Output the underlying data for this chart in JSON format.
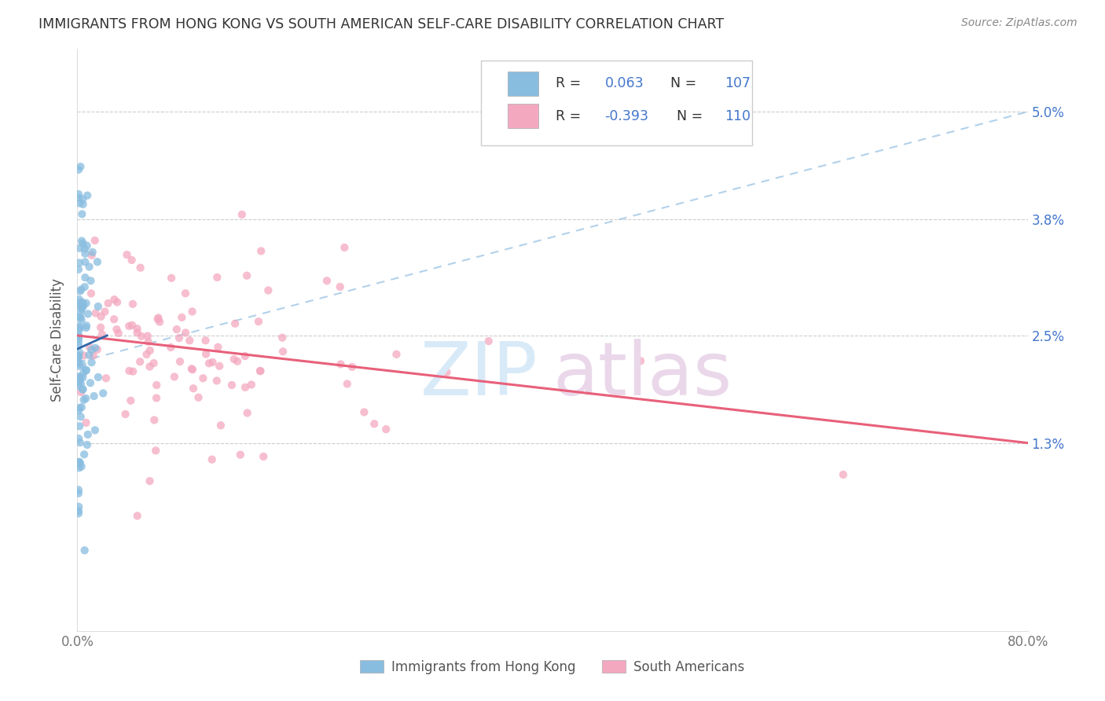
{
  "title": "IMMIGRANTS FROM HONG KONG VS SOUTH AMERICAN SELF-CARE DISABILITY CORRELATION CHART",
  "source": "Source: ZipAtlas.com",
  "ylabel": "Self-Care Disability",
  "ytick_labels": [
    "1.3%",
    "2.5%",
    "3.8%",
    "5.0%"
  ],
  "ytick_values": [
    0.013,
    0.025,
    0.038,
    0.05
  ],
  "xmin": 0.0,
  "xmax": 0.8,
  "ymin": -0.008,
  "ymax": 0.057,
  "R_hk": 0.063,
  "N_hk": 107,
  "R_sa": -0.393,
  "N_sa": 110,
  "color_hk": "#89bde0",
  "color_sa": "#f4a8c0",
  "trendline_hk_color": "#aacce8",
  "trendline_sa_color": "#e8607a",
  "legend_label_hk": "Immigrants from Hong Kong",
  "legend_label_sa": "South Americans",
  "hk_trend_x": [
    0.0,
    0.8
  ],
  "hk_trend_y": [
    0.022,
    0.05
  ],
  "sa_trend_x": [
    0.0,
    0.8
  ],
  "sa_trend_y": [
    0.025,
    0.013
  ],
  "hk_short_trend_x": [
    0.0,
    0.025
  ],
  "hk_short_trend_y": [
    0.0235,
    0.025
  ],
  "watermark_zip_color": "#d8eaf8",
  "watermark_atlas_color": "#ead8ea",
  "leg_R_color": "#333333",
  "leg_val_color": "#4477cc"
}
